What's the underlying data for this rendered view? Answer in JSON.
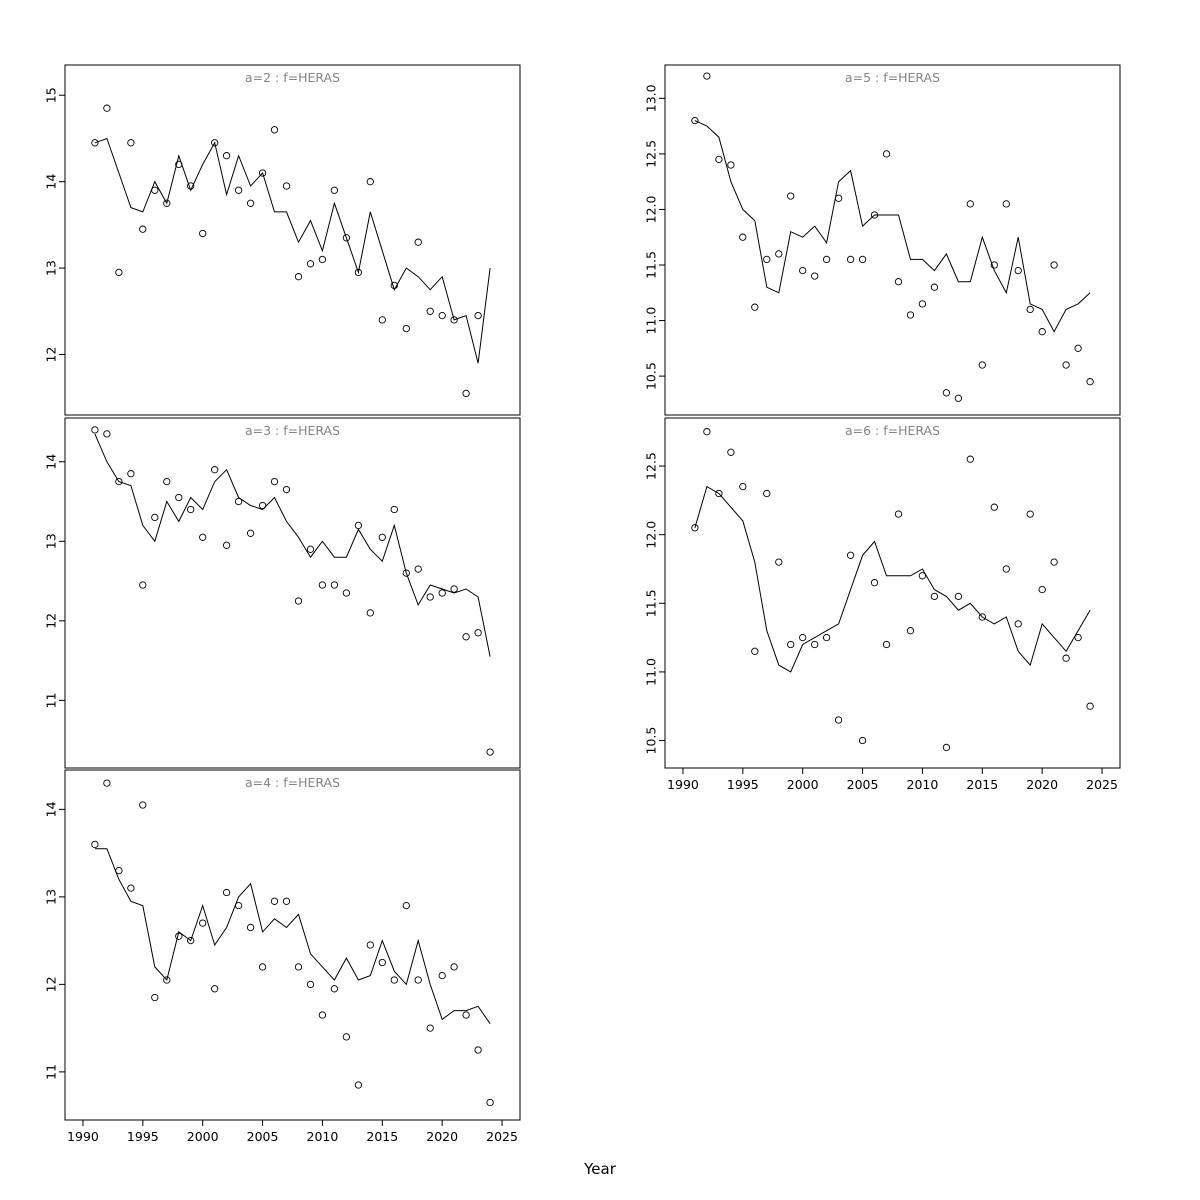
{
  "figure": {
    "xlabel": "Year",
    "line_color": "#000000",
    "point_color": "#000000",
    "title_color": "#858585"
  },
  "chart_data": [
    {
      "type": "scatter",
      "title": "a=2 : f=HERAS",
      "xlim": [
        1988.5,
        2026.5
      ],
      "ylim": [
        11.3,
        15.35
      ],
      "x_ticks": [
        1990,
        1995,
        2000,
        2005,
        2010,
        2015,
        2020,
        2025
      ],
      "y_ticks": [
        "12",
        "13",
        "14",
        "15"
      ],
      "show_x_labels": false,
      "points": {
        "x": [
          1991,
          1992,
          1993,
          1994,
          1995,
          1996,
          1997,
          1998,
          1999,
          2000,
          2001,
          2002,
          2003,
          2004,
          2005,
          2006,
          2007,
          2008,
          2009,
          2010,
          2011,
          2012,
          2013,
          2014,
          2015,
          2016,
          2017,
          2018,
          2019,
          2020,
          2021,
          2022,
          2023
        ],
        "y": [
          14.45,
          14.85,
          12.95,
          14.45,
          13.45,
          13.9,
          13.75,
          14.2,
          13.95,
          13.4,
          14.45,
          14.3,
          13.9,
          13.75,
          14.1,
          14.6,
          13.95,
          12.9,
          13.05,
          13.1,
          13.9,
          13.35,
          12.95,
          14.0,
          12.4,
          12.8,
          12.3,
          13.3,
          12.5,
          12.45,
          12.4,
          11.55,
          12.45
        ]
      },
      "line": {
        "x": [
          1991,
          1992,
          1993,
          1994,
          1995,
          1996,
          1997,
          1998,
          1999,
          2000,
          2001,
          2002,
          2003,
          2004,
          2005,
          2006,
          2007,
          2008,
          2009,
          2010,
          2011,
          2012,
          2013,
          2014,
          2015,
          2016,
          2017,
          2018,
          2019,
          2020,
          2021,
          2022,
          2023,
          2024
        ],
        "y": [
          14.45,
          14.5,
          14.1,
          13.7,
          13.65,
          14.0,
          13.75,
          14.3,
          13.9,
          14.2,
          14.45,
          13.85,
          14.3,
          13.95,
          14.1,
          13.65,
          13.65,
          13.3,
          13.55,
          13.2,
          13.75,
          13.35,
          12.95,
          13.65,
          13.2,
          12.75,
          13.0,
          12.9,
          12.75,
          12.9,
          12.4,
          12.45,
          11.9,
          13.0
        ]
      }
    },
    {
      "type": "scatter",
      "title": "a=3 : f=HERAS",
      "xlim": [
        1988.5,
        2026.5
      ],
      "ylim": [
        10.15,
        14.55
      ],
      "x_ticks": [
        1990,
        1995,
        2000,
        2005,
        2010,
        2015,
        2020,
        2025
      ],
      "y_ticks": [
        "11",
        "12",
        "13",
        "14"
      ],
      "show_x_labels": false,
      "points": {
        "x": [
          1991,
          1992,
          1993,
          1994,
          1995,
          1996,
          1997,
          1998,
          1999,
          2000,
          2001,
          2002,
          2003,
          2004,
          2005,
          2006,
          2007,
          2008,
          2009,
          2010,
          2011,
          2012,
          2013,
          2014,
          2015,
          2016,
          2017,
          2018,
          2019,
          2020,
          2021,
          2022,
          2023,
          2024
        ],
        "y": [
          14.4,
          14.35,
          13.75,
          13.85,
          12.45,
          13.3,
          13.75,
          13.55,
          13.4,
          13.05,
          13.9,
          12.95,
          13.5,
          13.1,
          13.45,
          13.75,
          13.65,
          12.25,
          12.9,
          12.45,
          12.45,
          12.35,
          13.2,
          12.1,
          13.05,
          13.4,
          12.6,
          12.65,
          12.3,
          12.35,
          12.4,
          11.8,
          11.85,
          10.35
        ]
      },
      "line": {
        "x": [
          1991,
          1992,
          1993,
          1994,
          1995,
          1996,
          1997,
          1998,
          1999,
          2000,
          2001,
          2002,
          2003,
          2004,
          2005,
          2006,
          2007,
          2008,
          2009,
          2010,
          2011,
          2012,
          2013,
          2014,
          2015,
          2016,
          2017,
          2018,
          2019,
          2020,
          2021,
          2022,
          2023,
          2024
        ],
        "y": [
          14.35,
          14.0,
          13.75,
          13.7,
          13.2,
          13.0,
          13.5,
          13.25,
          13.55,
          13.4,
          13.75,
          13.9,
          13.55,
          13.45,
          13.4,
          13.55,
          13.25,
          13.05,
          12.8,
          13.0,
          12.8,
          12.8,
          13.15,
          12.9,
          12.75,
          13.2,
          12.6,
          12.2,
          12.45,
          12.4,
          12.35,
          12.4,
          12.3,
          11.55
        ]
      }
    },
    {
      "type": "scatter",
      "title": "a=4 : f=HERAS",
      "xlim": [
        1988.5,
        2026.5
      ],
      "ylim": [
        10.45,
        14.45
      ],
      "x_ticks": [
        1990,
        1995,
        2000,
        2005,
        2010,
        2015,
        2020,
        2025
      ],
      "y_ticks": [
        "11",
        "12",
        "13",
        "14"
      ],
      "show_x_labels": true,
      "points": {
        "x": [
          1991,
          1992,
          1993,
          1994,
          1995,
          1996,
          1997,
          1998,
          1999,
          2000,
          2001,
          2002,
          2003,
          2004,
          2005,
          2006,
          2007,
          2008,
          2009,
          2010,
          2011,
          2012,
          2013,
          2014,
          2015,
          2016,
          2017,
          2018,
          2019,
          2020,
          2021,
          2022,
          2023,
          2024
        ],
        "y": [
          13.6,
          14.3,
          13.3,
          13.1,
          14.05,
          11.85,
          12.05,
          12.55,
          12.5,
          12.7,
          11.95,
          13.05,
          12.9,
          12.65,
          12.2,
          12.95,
          12.95,
          12.2,
          12.0,
          11.65,
          11.95,
          11.4,
          10.85,
          12.45,
          12.25,
          12.05,
          12.9,
          12.05,
          11.5,
          12.1,
          12.2,
          11.65,
          11.25,
          10.65
        ]
      },
      "line": {
        "x": [
          1991,
          1992,
          1993,
          1994,
          1995,
          1996,
          1997,
          1998,
          1999,
          2000,
          2001,
          2002,
          2003,
          2004,
          2005,
          2006,
          2007,
          2008,
          2009,
          2010,
          2011,
          2012,
          2013,
          2014,
          2015,
          2016,
          2017,
          2018,
          2019,
          2020,
          2021,
          2022,
          2023,
          2024
        ],
        "y": [
          13.55,
          13.55,
          13.2,
          12.95,
          12.9,
          12.2,
          12.05,
          12.6,
          12.5,
          12.9,
          12.45,
          12.65,
          13.0,
          13.15,
          12.6,
          12.75,
          12.65,
          12.8,
          12.35,
          12.2,
          12.05,
          12.3,
          12.05,
          12.1,
          12.5,
          12.15,
          12.0,
          12.5,
          12.0,
          11.6,
          11.7,
          11.7,
          11.75,
          11.55
        ]
      }
    },
    {
      "type": "scatter",
      "title": "a=5 : f=HERAS",
      "xlim": [
        1988.5,
        2026.5
      ],
      "ylim": [
        10.15,
        13.3
      ],
      "x_ticks": [
        1990,
        1995,
        2000,
        2005,
        2010,
        2015,
        2020,
        2025
      ],
      "y_ticks": [
        "10.5",
        "11.0",
        "11.5",
        "12.0",
        "12.5",
        "13.0"
      ],
      "show_x_labels": false,
      "points": {
        "x": [
          1991,
          1992,
          1993,
          1994,
          1995,
          1996,
          1997,
          1998,
          1999,
          2000,
          2001,
          2002,
          2003,
          2004,
          2005,
          2006,
          2007,
          2008,
          2009,
          2010,
          2011,
          2012,
          2013,
          2014,
          2015,
          2016,
          2017,
          2018,
          2019,
          2020,
          2021,
          2022,
          2023,
          2024
        ],
        "y": [
          12.8,
          13.2,
          12.45,
          12.4,
          11.75,
          11.12,
          11.55,
          11.6,
          12.12,
          11.45,
          11.4,
          11.55,
          12.1,
          11.55,
          11.55,
          11.95,
          12.5,
          11.35,
          11.05,
          11.15,
          11.3,
          10.35,
          10.3,
          12.05,
          10.6,
          11.5,
          12.05,
          11.45,
          11.1,
          10.9,
          11.5,
          10.6,
          10.75,
          10.45
        ]
      },
      "line": {
        "x": [
          1991,
          1992,
          1993,
          1994,
          1995,
          1996,
          1997,
          1998,
          1999,
          2000,
          2001,
          2002,
          2003,
          2004,
          2005,
          2006,
          2007,
          2008,
          2009,
          2010,
          2011,
          2012,
          2013,
          2014,
          2015,
          2016,
          2017,
          2018,
          2019,
          2020,
          2021,
          2022,
          2023,
          2024
        ],
        "y": [
          12.8,
          12.75,
          12.65,
          12.25,
          12.0,
          11.9,
          11.3,
          11.25,
          11.8,
          11.75,
          11.85,
          11.7,
          12.25,
          12.35,
          11.85,
          11.95,
          11.95,
          11.95,
          11.55,
          11.55,
          11.45,
          11.6,
          11.35,
          11.35,
          11.75,
          11.45,
          11.25,
          11.75,
          11.15,
          11.1,
          10.9,
          11.1,
          11.15,
          11.25
        ]
      }
    },
    {
      "type": "scatter",
      "title": "a=6 : f=HERAS",
      "xlim": [
        1988.5,
        2026.5
      ],
      "ylim": [
        10.3,
        12.85
      ],
      "x_ticks": [
        1990,
        1995,
        2000,
        2005,
        2010,
        2015,
        2020,
        2025
      ],
      "y_ticks": [
        "10.5",
        "11.0",
        "11.5",
        "12.0",
        "12.5"
      ],
      "show_x_labels": true,
      "points": {
        "x": [
          1991,
          1992,
          1993,
          1994,
          1995,
          1996,
          1997,
          1998,
          1999,
          2000,
          2001,
          2002,
          2003,
          2004,
          2005,
          2006,
          2007,
          2008,
          2009,
          2010,
          2011,
          2012,
          2013,
          2014,
          2015,
          2016,
          2017,
          2018,
          2019,
          2020,
          2021,
          2022,
          2023,
          2024
        ],
        "y": [
          12.05,
          12.75,
          12.3,
          12.6,
          12.35,
          11.15,
          12.3,
          11.8,
          11.2,
          11.25,
          11.2,
          11.25,
          10.65,
          11.85,
          10.5,
          11.65,
          11.2,
          12.15,
          11.3,
          11.7,
          11.55,
          10.45,
          11.55,
          12.55,
          11.4,
          12.2,
          11.75,
          11.35,
          12.15,
          11.6,
          11.8,
          11.1,
          11.25,
          10.75
        ]
      },
      "line": {
        "x": [
          1991,
          1992,
          1993,
          1994,
          1995,
          1996,
          1997,
          1998,
          1999,
          2000,
          2001,
          2002,
          2003,
          2004,
          2005,
          2006,
          2007,
          2008,
          2009,
          2010,
          2011,
          2012,
          2013,
          2014,
          2015,
          2016,
          2017,
          2018,
          2019,
          2020,
          2021,
          2022,
          2023,
          2024
        ],
        "y": [
          12.05,
          12.35,
          12.3,
          12.2,
          12.1,
          11.8,
          11.3,
          11.05,
          11.0,
          11.2,
          11.25,
          11.3,
          11.35,
          11.6,
          11.85,
          11.95,
          11.7,
          11.7,
          11.7,
          11.75,
          11.6,
          11.55,
          11.45,
          11.5,
          11.4,
          11.35,
          11.4,
          11.15,
          11.05,
          11.35,
          11.25,
          11.15,
          11.3,
          11.45
        ]
      }
    }
  ]
}
